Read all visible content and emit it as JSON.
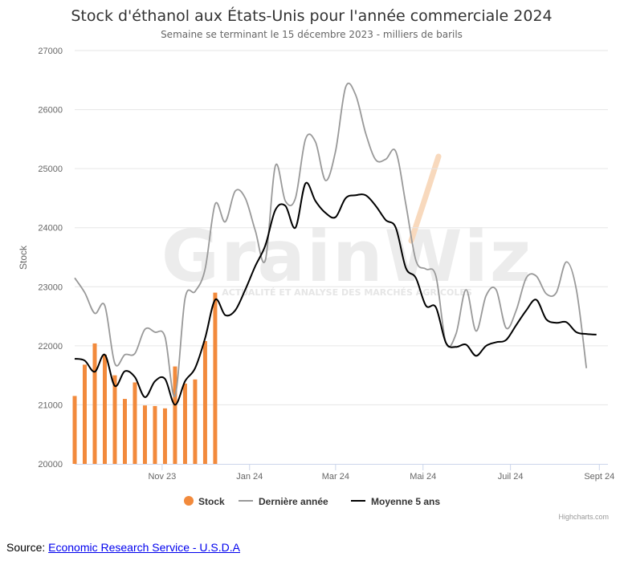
{
  "chart_data": {
    "type": "line",
    "title": "Stock d'éthanol aux États-Unis pour l'année commerciale 2024",
    "subtitle": "Semaine se terminant le 15 décembre 2023 - milliers de barils",
    "ylabel": "Stock",
    "xlabel": "",
    "ylim": [
      20000,
      27000
    ],
    "y_ticks": [
      "20000",
      "21000",
      "22000",
      "23000",
      "24000",
      "25000",
      "26000",
      "27000"
    ],
    "x_range": [
      "2023-09-01",
      "2024-09-07"
    ],
    "x_ticks": [
      {
        "date": "2023-11-01",
        "label": "Nov 23"
      },
      {
        "date": "2024-01-01",
        "label": "Jan 24"
      },
      {
        "date": "2024-03-01",
        "label": "Mar 24"
      },
      {
        "date": "2024-05-01",
        "label": "Mai 24"
      },
      {
        "date": "2024-07-01",
        "label": "Juil 24"
      },
      {
        "date": "2024-09-01",
        "label": "Sept 24"
      }
    ],
    "grid": true,
    "legend_position": "bottom-center",
    "series": [
      {
        "name": "Stock",
        "kind": "column",
        "color": "#f28a3c",
        "data": [
          [
            "2023-09-01",
            21150
          ],
          [
            "2023-09-08",
            21680
          ],
          [
            "2023-09-15",
            22040
          ],
          [
            "2023-09-22",
            21850
          ],
          [
            "2023-09-29",
            21500
          ],
          [
            "2023-10-06",
            21100
          ],
          [
            "2023-10-13",
            21380
          ],
          [
            "2023-10-20",
            20990
          ],
          [
            "2023-10-27",
            20980
          ],
          [
            "2023-11-03",
            20940
          ],
          [
            "2023-11-10",
            21650
          ],
          [
            "2023-11-17",
            21360
          ],
          [
            "2023-11-24",
            21430
          ],
          [
            "2023-12-01",
            22080
          ],
          [
            "2023-12-08",
            22900
          ]
        ]
      },
      {
        "name": "Dernière année",
        "kind": "line",
        "color": "#999999",
        "data": [
          [
            "2023-09-01",
            23150
          ],
          [
            "2023-09-08",
            22900
          ],
          [
            "2023-09-15",
            22550
          ],
          [
            "2023-09-22",
            22680
          ],
          [
            "2023-09-29",
            21700
          ],
          [
            "2023-10-06",
            21850
          ],
          [
            "2023-10-13",
            21870
          ],
          [
            "2023-10-20",
            22280
          ],
          [
            "2023-10-27",
            22230
          ],
          [
            "2023-11-03",
            22150
          ],
          [
            "2023-11-10",
            21150
          ],
          [
            "2023-11-17",
            22800
          ],
          [
            "2023-11-24",
            22920
          ],
          [
            "2023-12-01",
            23300
          ],
          [
            "2023-12-08",
            24400
          ],
          [
            "2023-12-15",
            24100
          ],
          [
            "2023-12-22",
            24620
          ],
          [
            "2023-12-29",
            24500
          ],
          [
            "2024-01-05",
            23950
          ],
          [
            "2024-01-12",
            23450
          ],
          [
            "2024-01-19",
            25050
          ],
          [
            "2024-01-26",
            24450
          ],
          [
            "2024-02-02",
            24500
          ],
          [
            "2024-02-09",
            25500
          ],
          [
            "2024-02-16",
            25450
          ],
          [
            "2024-02-23",
            24800
          ],
          [
            "2024-03-01",
            25300
          ],
          [
            "2024-03-08",
            26380
          ],
          [
            "2024-03-15",
            26250
          ],
          [
            "2024-03-22",
            25600
          ],
          [
            "2024-03-29",
            25150
          ],
          [
            "2024-04-05",
            25160
          ],
          [
            "2024-04-12",
            25290
          ],
          [
            "2024-04-19",
            24400
          ],
          [
            "2024-04-26",
            23450
          ],
          [
            "2024-05-03",
            23300
          ],
          [
            "2024-05-10",
            23180
          ],
          [
            "2024-05-17",
            22050
          ],
          [
            "2024-05-24",
            22200
          ],
          [
            "2024-05-31",
            22950
          ],
          [
            "2024-06-07",
            22250
          ],
          [
            "2024-06-14",
            22850
          ],
          [
            "2024-06-21",
            22950
          ],
          [
            "2024-06-28",
            22300
          ],
          [
            "2024-07-05",
            22600
          ],
          [
            "2024-07-12",
            23150
          ],
          [
            "2024-07-19",
            23180
          ],
          [
            "2024-07-26",
            22880
          ],
          [
            "2024-08-02",
            22900
          ],
          [
            "2024-08-09",
            23420
          ],
          [
            "2024-08-16",
            22950
          ],
          [
            "2024-08-23",
            21620
          ]
        ]
      },
      {
        "name": "Moyenne 5 ans",
        "kind": "line",
        "color": "#000000",
        "data": [
          [
            "2023-09-01",
            21780
          ],
          [
            "2023-09-08",
            21750
          ],
          [
            "2023-09-15",
            21560
          ],
          [
            "2023-09-22",
            21850
          ],
          [
            "2023-09-29",
            21320
          ],
          [
            "2023-10-06",
            21570
          ],
          [
            "2023-10-13",
            21470
          ],
          [
            "2023-10-20",
            21130
          ],
          [
            "2023-10-27",
            21400
          ],
          [
            "2023-11-03",
            21440
          ],
          [
            "2023-11-10",
            21000
          ],
          [
            "2023-11-17",
            21400
          ],
          [
            "2023-11-24",
            21620
          ],
          [
            "2023-12-01",
            22130
          ],
          [
            "2023-12-08",
            22780
          ],
          [
            "2023-12-15",
            22520
          ],
          [
            "2023-12-22",
            22600
          ],
          [
            "2023-12-29",
            22950
          ],
          [
            "2024-01-05",
            23350
          ],
          [
            "2024-01-12",
            23700
          ],
          [
            "2024-01-19",
            24300
          ],
          [
            "2024-01-26",
            24370
          ],
          [
            "2024-02-02",
            24000
          ],
          [
            "2024-02-09",
            24750
          ],
          [
            "2024-02-16",
            24450
          ],
          [
            "2024-02-23",
            24250
          ],
          [
            "2024-03-01",
            24180
          ],
          [
            "2024-03-08",
            24500
          ],
          [
            "2024-03-15",
            24550
          ],
          [
            "2024-03-22",
            24550
          ],
          [
            "2024-03-29",
            24370
          ],
          [
            "2024-04-05",
            24130
          ],
          [
            "2024-04-12",
            24000
          ],
          [
            "2024-04-19",
            23320
          ],
          [
            "2024-04-26",
            23150
          ],
          [
            "2024-05-03",
            22680
          ],
          [
            "2024-05-10",
            22650
          ],
          [
            "2024-05-17",
            22050
          ],
          [
            "2024-05-24",
            21980
          ],
          [
            "2024-05-31",
            22020
          ],
          [
            "2024-06-07",
            21830
          ],
          [
            "2024-06-14",
            22000
          ],
          [
            "2024-06-21",
            22060
          ],
          [
            "2024-06-28",
            22100
          ],
          [
            "2024-07-05",
            22350
          ],
          [
            "2024-07-12",
            22600
          ],
          [
            "2024-07-19",
            22780
          ],
          [
            "2024-07-26",
            22450
          ],
          [
            "2024-08-02",
            22390
          ],
          [
            "2024-08-09",
            22400
          ],
          [
            "2024-08-16",
            22230
          ],
          [
            "2024-08-23",
            22200
          ],
          [
            "2024-08-30",
            22190
          ]
        ]
      }
    ]
  },
  "watermark": {
    "brand": "GrainWiz",
    "tagline": "ACTUALITÉ ET ANALYSE DES MARCHÉS AGRICOLES"
  },
  "credits": "Highcharts.com",
  "source": {
    "prefix": "Source: ",
    "link_text": "Economic Research Service - U.S.D.A"
  }
}
